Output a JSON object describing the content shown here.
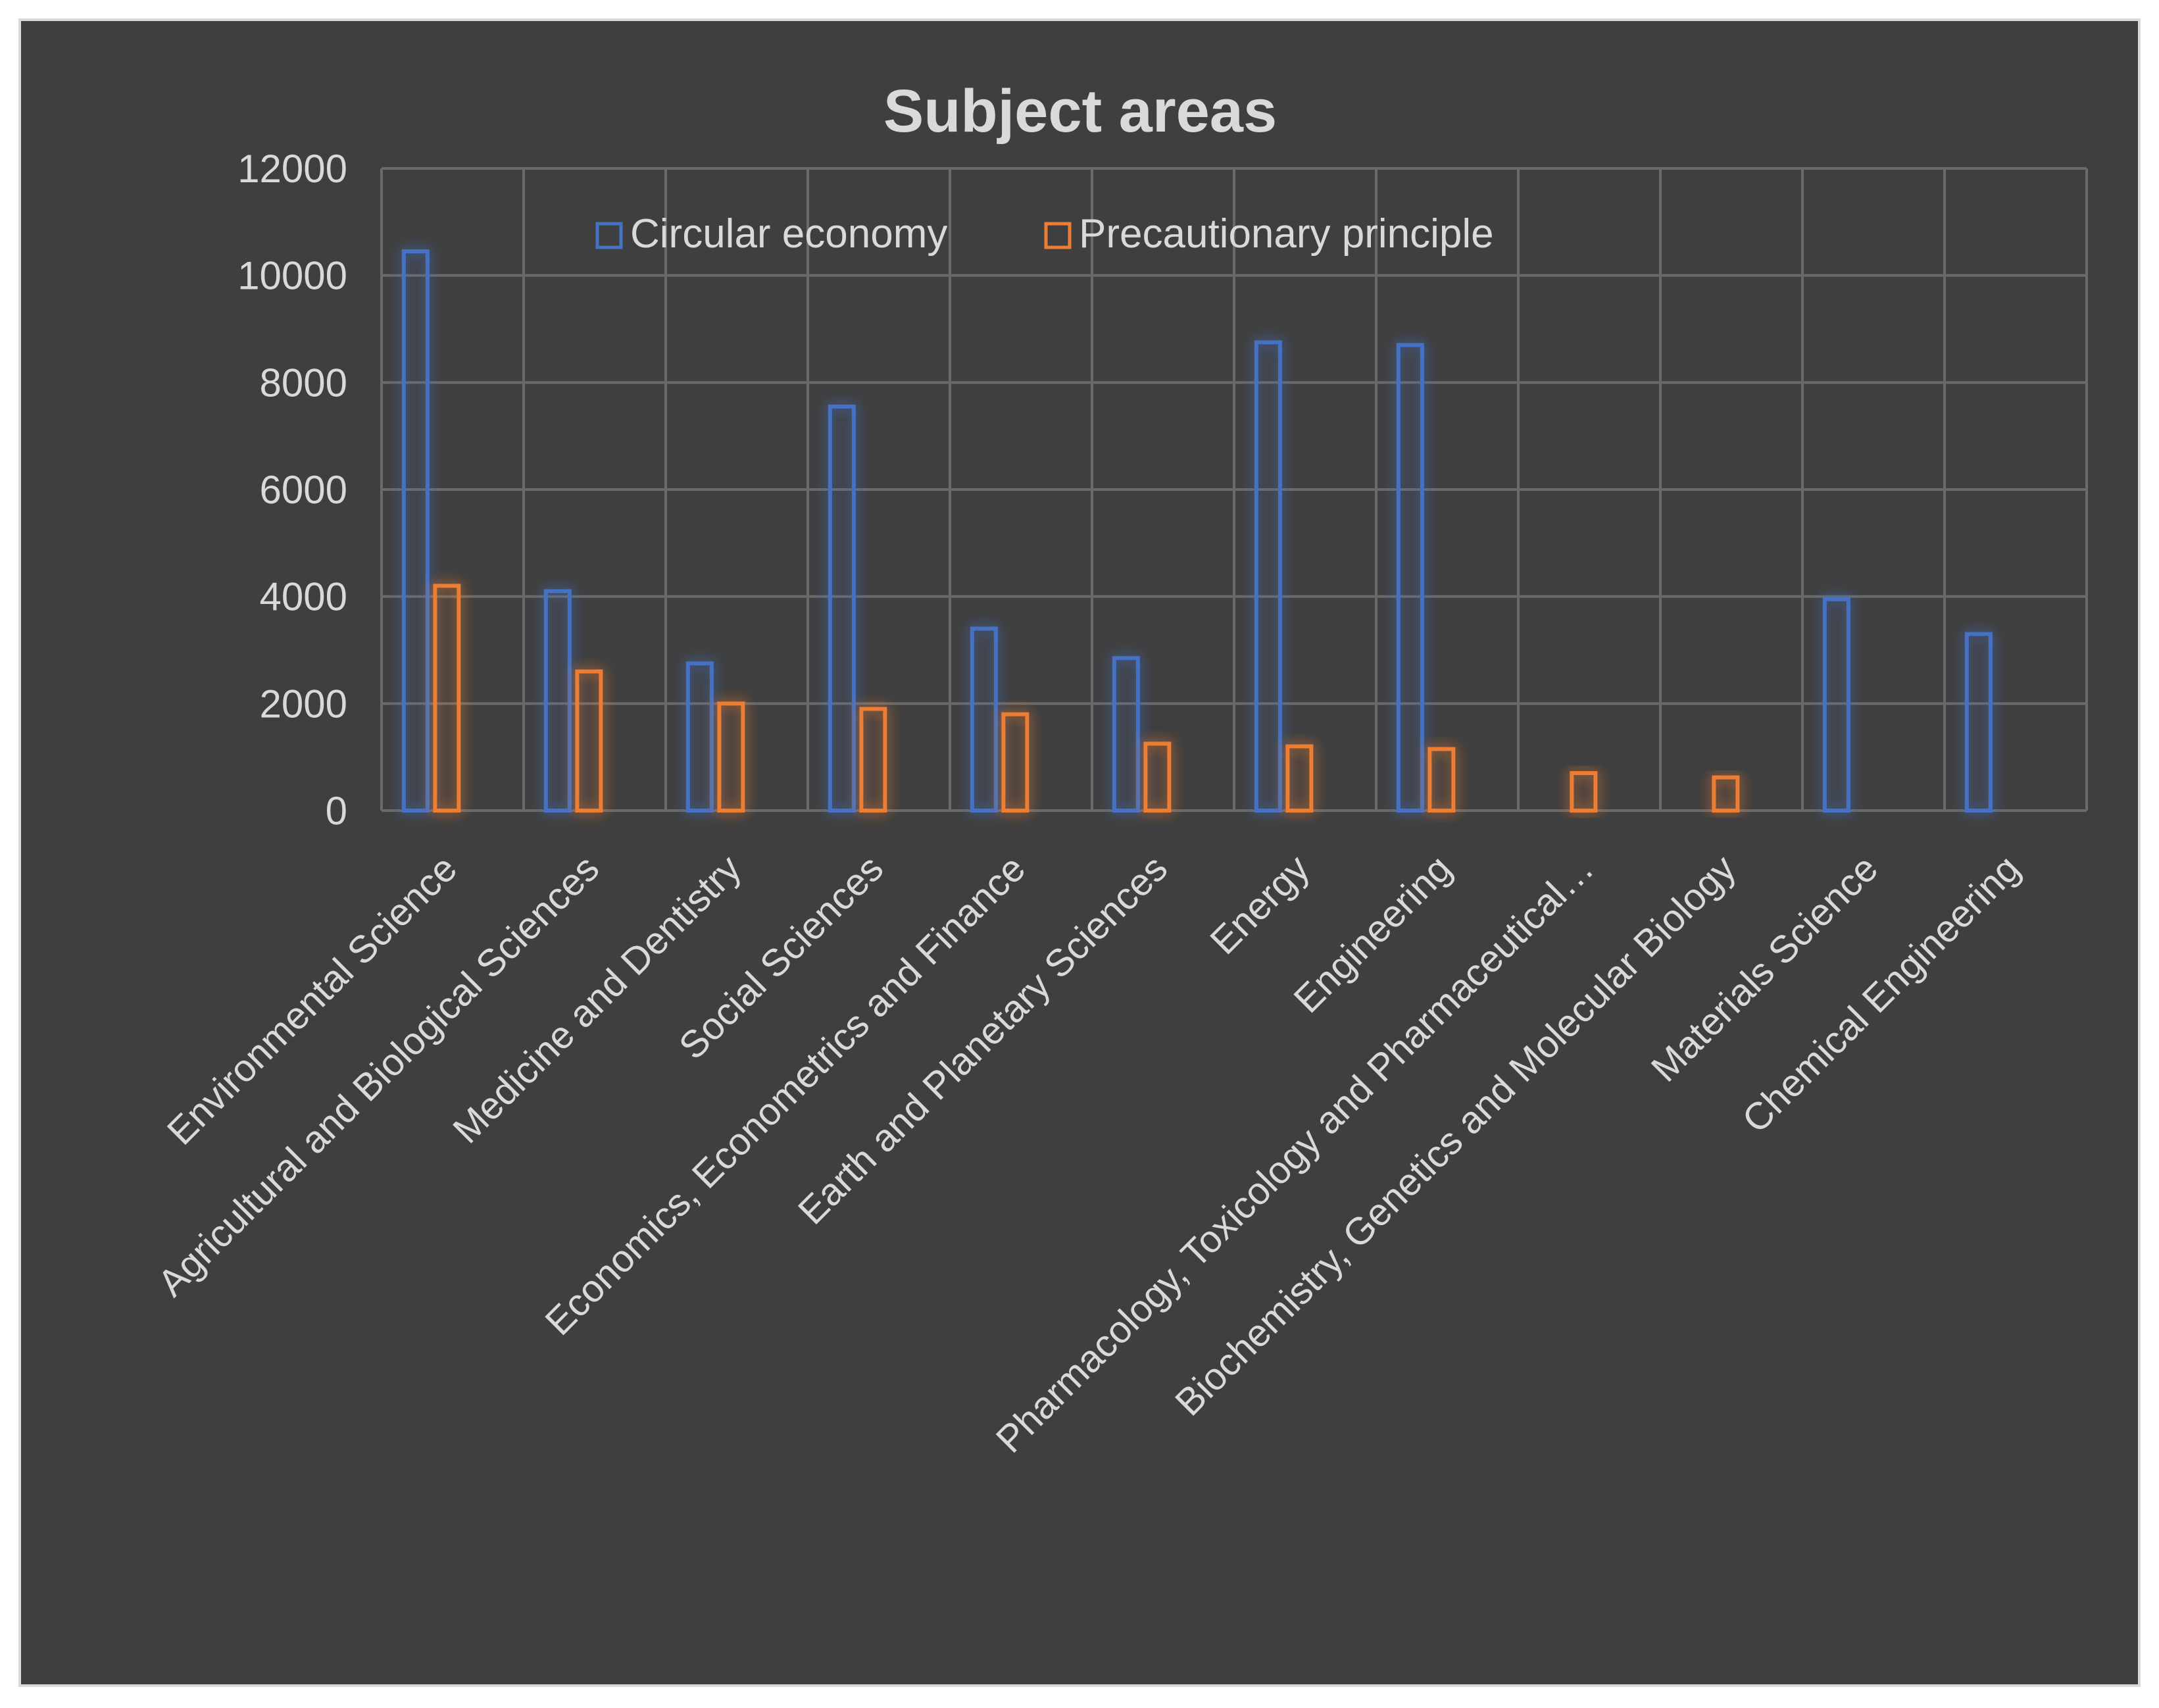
{
  "colors": {
    "background": "#3f3f3f",
    "series1": "#4472c4",
    "series2": "#ed7d31",
    "text": "#d9d9d9",
    "grid": "#6a6a6a"
  },
  "chart_data": {
    "type": "bar",
    "title": "Subject areas",
    "xlabel": "",
    "ylabel": "",
    "ylim": [
      0,
      12000
    ],
    "yticks": [
      0,
      2000,
      4000,
      6000,
      8000,
      10000,
      12000
    ],
    "legend_position": "top",
    "categories": [
      "Environmental Science",
      "Agricultural and Biological Sciences",
      "Medicine and Dentistry",
      "Social Sciences",
      "Economics, Econometrics and Finance",
      "Earth and Planetary Sciences",
      "Energy",
      "Engineering",
      "Pharmacology, Toxicology and Pharmaceutical…",
      "Biochemistry, Genetics and Molecular Biology",
      "Materials Science",
      "Chemical Engineering"
    ],
    "series": [
      {
        "name": "Circular economy",
        "values": [
          10450,
          4100,
          2750,
          7550,
          3400,
          2850,
          8750,
          8700,
          0,
          0,
          3950,
          3300
        ]
      },
      {
        "name": "Precautionary principle",
        "values": [
          4200,
          2600,
          2000,
          1900,
          1800,
          1250,
          1200,
          1150,
          700,
          620,
          0,
          0
        ]
      }
    ]
  }
}
